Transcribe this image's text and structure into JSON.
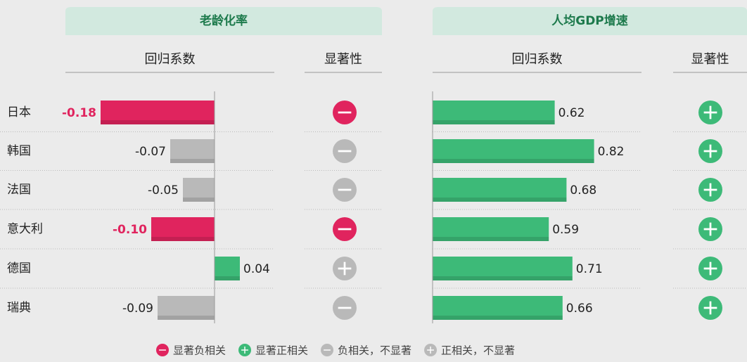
{
  "chart_data": [
    {
      "type": "bar",
      "title": "老龄化率",
      "headers": [
        "回归系数",
        "显著性"
      ],
      "categories": [
        "日本",
        "韩国",
        "法国",
        "意大利",
        "德国",
        "瑞典"
      ],
      "values": [
        -0.18,
        -0.07,
        -0.05,
        -0.1,
        0.04,
        -0.09
      ],
      "value_labels": [
        "-0.18",
        "-0.07",
        "-0.05",
        "-0.10",
        "0.04",
        "-0.09"
      ],
      "significance": [
        "neg_sig",
        "neg",
        "neg",
        "neg_sig",
        "pos",
        "neg"
      ],
      "xlim": [
        -0.2,
        0.1
      ]
    },
    {
      "type": "bar",
      "title": "人均GDP增速",
      "headers": [
        "回归系数",
        "显著性"
      ],
      "values": [
        0.62,
        0.82,
        0.68,
        0.59,
        0.71,
        0.66
      ],
      "value_labels": [
        "0.62",
        "0.82",
        "0.68",
        "0.59",
        "0.71",
        "0.66"
      ],
      "significance": [
        "pos_sig",
        "pos_sig",
        "pos_sig",
        "pos_sig",
        "pos_sig",
        "pos_sig"
      ],
      "xlim": [
        0,
        1
      ]
    }
  ],
  "legend": [
    {
      "key": "neg_sig",
      "label": "显著负相关"
    },
    {
      "key": "pos_sig",
      "label": "显著正相关"
    },
    {
      "key": "neg",
      "label": "负相关，不显著"
    },
    {
      "key": "pos",
      "label": "正相关，不显著"
    }
  ],
  "colors": {
    "neg_sig": "#e0245e",
    "pos_sig": "#3dba78",
    "neg": "#b9b9b9",
    "pos": "#b9b9b9"
  }
}
